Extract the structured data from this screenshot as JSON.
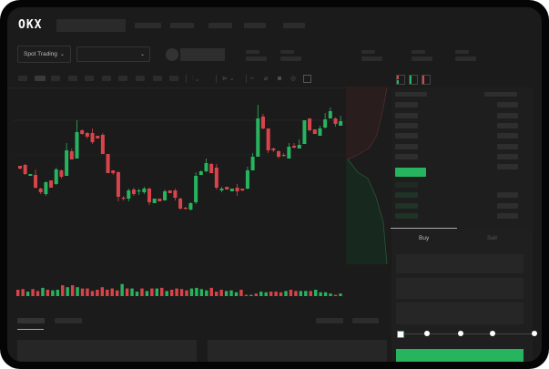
{
  "header": {
    "logo": "OKX"
  },
  "market_bar": {
    "mode_selector": "Spot Trading"
  },
  "trade_panel": {
    "tabs": [
      {
        "label": "Buy",
        "active": true
      },
      {
        "label": "Sell",
        "active": false
      }
    ],
    "slider_fraction": 0
  },
  "colors": {
    "up": "#27b45f",
    "down": "#d9444a",
    "background": "#1b1b1b",
    "placeholder": "#2c2c2c"
  },
  "chart_data": {
    "type": "candlestick",
    "ylim": [
      10,
      205
    ],
    "candles": [
      [
        118,
        118,
        114,
        115
      ],
      [
        119,
        120,
        108,
        109
      ],
      [
        107,
        109,
        107,
        109
      ],
      [
        108,
        114,
        93,
        94
      ],
      [
        93,
        94,
        87,
        89
      ],
      [
        87,
        101,
        85,
        100
      ],
      [
        102,
        102,
        94,
        94
      ],
      [
        98,
        116,
        97,
        114
      ],
      [
        113,
        114,
        104,
        106
      ],
      [
        107,
        143,
        107,
        135
      ],
      [
        134,
        137,
        125,
        125
      ],
      [
        126,
        168,
        126,
        155
      ],
      [
        157,
        158,
        152,
        153
      ],
      [
        154,
        155,
        148,
        150
      ],
      [
        154,
        159,
        142,
        144
      ],
      [
        151,
        151,
        148,
        148
      ],
      [
        152,
        154,
        131,
        131
      ],
      [
        131,
        131,
        110,
        110
      ],
      [
        113,
        113,
        108,
        110
      ],
      [
        111,
        112,
        79,
        84
      ],
      [
        83,
        85,
        80,
        82
      ],
      [
        82,
        93,
        79,
        91
      ],
      [
        92,
        94,
        85,
        87
      ],
      [
        90,
        93,
        86,
        91
      ],
      [
        89,
        95,
        87,
        93
      ],
      [
        93,
        94,
        75,
        78
      ],
      [
        77,
        82,
        77,
        82
      ],
      [
        82,
        82,
        79,
        79
      ],
      [
        80,
        92,
        80,
        90
      ],
      [
        91,
        91,
        88,
        88
      ],
      [
        91,
        93,
        80,
        83
      ],
      [
        82,
        83,
        70,
        71
      ],
      [
        72,
        73,
        70,
        71
      ],
      [
        70,
        78,
        69,
        77
      ],
      [
        78,
        111,
        76,
        107
      ],
      [
        108,
        113,
        108,
        112
      ],
      [
        112,
        126,
        111,
        121
      ],
      [
        120,
        121,
        110,
        110
      ],
      [
        116,
        120,
        92,
        94
      ],
      [
        91,
        95,
        89,
        93
      ],
      [
        95,
        95,
        92,
        92
      ],
      [
        90,
        93,
        90,
        93
      ],
      [
        94,
        98,
        85,
        90
      ],
      [
        93,
        93,
        90,
        91
      ],
      [
        93,
        117,
        92,
        113
      ],
      [
        113,
        132,
        113,
        128
      ],
      [
        128,
        185,
        128,
        170
      ],
      [
        172,
        175,
        158,
        159
      ],
      [
        159,
        159,
        132,
        135
      ],
      [
        137,
        138,
        133,
        135
      ],
      [
        134,
        135,
        126,
        128
      ],
      [
        130,
        132,
        128,
        129
      ],
      [
        126,
        143,
        126,
        139
      ],
      [
        140,
        143,
        137,
        138
      ],
      [
        137,
        147,
        137,
        141
      ],
      [
        142,
        168,
        142,
        168
      ],
      [
        170,
        170,
        156,
        157
      ],
      [
        158,
        158,
        153,
        153
      ],
      [
        151,
        162,
        151,
        159
      ],
      [
        160,
        176,
        159,
        169
      ],
      [
        170,
        182,
        170,
        178
      ],
      [
        170,
        171,
        161,
        164
      ],
      [
        162,
        173,
        162,
        167
      ]
    ],
    "candle_fields": [
      "open",
      "high",
      "low",
      "close"
    ],
    "volume": {
      "values": [
        10,
        11,
        7,
        11,
        8,
        13,
        10,
        9,
        10,
        17,
        14,
        17,
        14,
        12,
        12,
        8,
        10,
        14,
        10,
        12,
        9,
        19,
        12,
        12,
        7,
        12,
        8,
        12,
        12,
        13,
        8,
        10,
        12,
        11,
        9,
        12,
        13,
        11,
        9,
        13,
        7,
        10,
        8,
        9,
        6,
        10,
        2,
        2,
        4,
        7,
        6,
        7,
        7,
        6,
        8,
        10,
        8,
        8,
        8,
        8,
        10,
        6,
        6,
        4,
        2,
        4
      ],
      "direction": [
        "down",
        "down",
        "up",
        "down",
        "down",
        "up",
        "down",
        "up",
        "up",
        "down",
        "up",
        "down",
        "up",
        "down",
        "down",
        "down",
        "down",
        "down",
        "down",
        "down",
        "down",
        "up",
        "down",
        "up",
        "up",
        "down",
        "up",
        "down",
        "up",
        "down",
        "up",
        "down",
        "down",
        "down",
        "down",
        "up",
        "up",
        "up",
        "up",
        "down",
        "down",
        "down",
        "up",
        "up",
        "up",
        "down",
        "down",
        "up",
        "down",
        "up",
        "up",
        "down",
        "down",
        "down",
        "up",
        "down",
        "down",
        "up",
        "up",
        "down",
        "up",
        "up",
        "up",
        "up",
        "down",
        "up"
      ]
    }
  }
}
